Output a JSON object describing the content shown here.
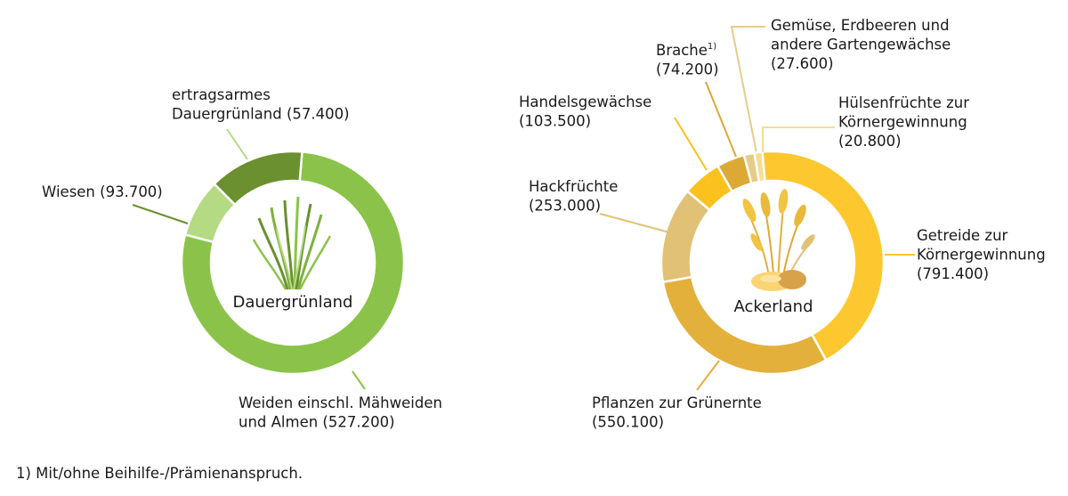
{
  "chart_data": [
    {
      "type": "pie",
      "center_label": "Dauergrünland",
      "slices": [
        {
          "name": "Weiden einschl. Mähweiden und Almen",
          "label": [
            "Weiden einschl. Mähweiden",
            "und Almen (527.200)"
          ],
          "value": 527200,
          "color": "#8bc34a"
        },
        {
          "name": "ertragsarmes Dauergrünland",
          "label": [
            "ertragsarmes",
            "Dauergrünland (57.400)"
          ],
          "value": 57400,
          "color": "#b5da84"
        },
        {
          "name": "Wiesen",
          "label": [
            "Wiesen (93.700)"
          ],
          "value": 93700,
          "color": "#6a9030"
        }
      ]
    },
    {
      "type": "pie",
      "center_label": "Ackerland",
      "slices": [
        {
          "name": "Getreide zur Körnergewinnung",
          "label": [
            "Getreide zur",
            "Körnergewinnung",
            "(791.400)"
          ],
          "value": 791400,
          "color": "#fdc82f"
        },
        {
          "name": "Pflanzen zur Grünernte",
          "label": [
            "Pflanzen zur Grünernte",
            "(550.100)"
          ],
          "value": 550100,
          "color": "#e3b03c"
        },
        {
          "name": "Hackfrüchte",
          "label": [
            "Hackfrüchte",
            "(253.000)"
          ],
          "value": 253000,
          "color": "#e1c176"
        },
        {
          "name": "Handelsgewächse",
          "label": [
            "Handelsgewächse",
            "(103.500)"
          ],
          "value": 103500,
          "color": "#fbc21f"
        },
        {
          "name": "Brache",
          "label": [
            "Brache",
            "(74.200)"
          ],
          "footnote_mark": "1)",
          "value": 74200,
          "color": "#dca935"
        },
        {
          "name": "Gemüse, Erdbeeren und andere Gartengewächse",
          "label": [
            "Gemüse, Erdbeeren und",
            "andere Gartengewächse",
            "(27.600)"
          ],
          "value": 27600,
          "color": "#e6cc8c"
        },
        {
          "name": "Hülsenfrüchte zur Körnergewinnung",
          "label": [
            "Hülsenfrüchte zur",
            "Körnergewinnung",
            "(20.800)"
          ],
          "value": 20800,
          "color": "#f6dd92"
        }
      ]
    }
  ],
  "footnote": "1) Mit/ohne Beihilfe-/Prämienanspruch.",
  "icons": [
    "grass-icon",
    "wheat-potato-icon"
  ]
}
